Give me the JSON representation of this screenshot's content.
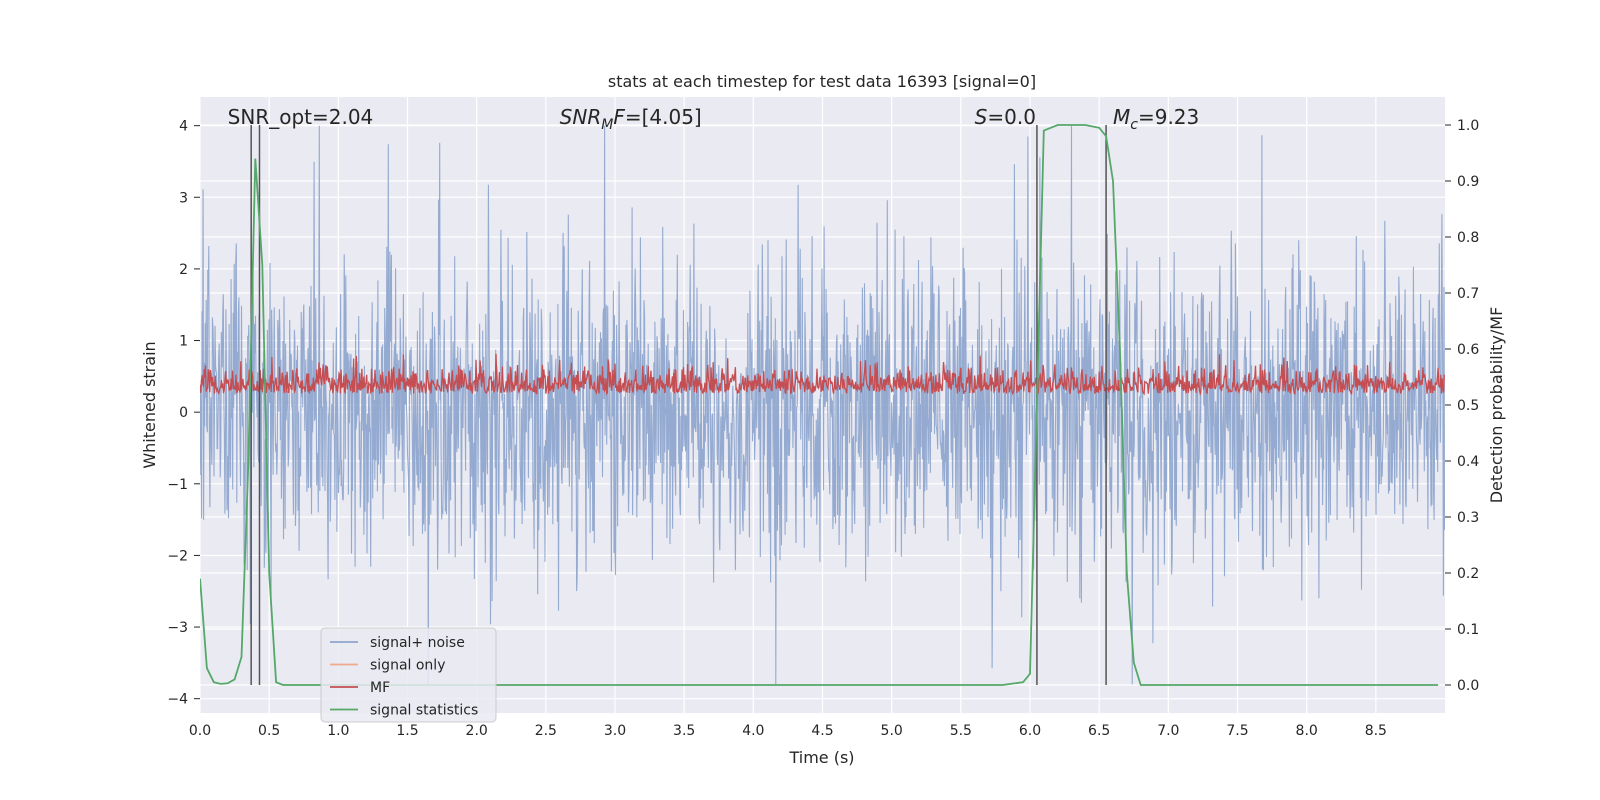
{
  "chart_data": {
    "type": "line",
    "title": "stats at each timestep for test data 16393 [signal=0]",
    "xlabel": "Time (s)",
    "ylabel": "Whitened strain",
    "ylabel_right": "Detection probability/MF",
    "xlim": [
      0.0,
      9.0
    ],
    "ylim": [
      -4.2,
      4.4
    ],
    "ylim_right": [
      -0.05,
      1.05
    ],
    "x_ticks": [
      "0.0",
      "0.5",
      "1.0",
      "1.5",
      "2.0",
      "2.5",
      "3.0",
      "3.5",
      "4.0",
      "4.5",
      "5.0",
      "5.5",
      "6.0",
      "6.5",
      "7.0",
      "7.5",
      "8.0",
      "8.5"
    ],
    "y_ticks": [
      "4",
      "3",
      "2",
      "1",
      "0",
      "−1",
      "−2",
      "−3",
      "−4"
    ],
    "y_right_ticks": [
      "1.0",
      "0.9",
      "0.8",
      "0.7",
      "0.6",
      "0.5",
      "0.4",
      "0.3",
      "0.2",
      "0.1",
      "0.0"
    ],
    "grid": true,
    "legend_placement": "lower-left",
    "annotations": [
      {
        "id": "snr-opt",
        "x": 0.2,
        "text_parts": [
          {
            "t": "SNR_opt=2.04",
            "style": "normal"
          }
        ]
      },
      {
        "id": "snr-mf",
        "x": 2.6,
        "text_parts": [
          {
            "t": "SNR",
            "style": "italic"
          },
          {
            "t": "M",
            "style": "italic-sub"
          },
          {
            "t": "F",
            "style": "italic"
          },
          {
            "t": "=[4.05]",
            "style": "normal"
          }
        ]
      },
      {
        "id": "s-val",
        "x": 5.6,
        "text_parts": [
          {
            "t": "S",
            "style": "italic"
          },
          {
            "t": "=0.0",
            "style": "normal"
          }
        ]
      },
      {
        "id": "mc-val",
        "x": 6.6,
        "text_parts": [
          {
            "t": "M",
            "style": "italic"
          },
          {
            "t": "c",
            "style": "italic-sub"
          },
          {
            "t": "=9.23",
            "style": "normal"
          }
        ]
      }
    ],
    "vlines": [
      0.37,
      0.43,
      6.05,
      6.55
    ],
    "series": [
      {
        "name": "signal+ noise",
        "color": "#8fa6cd",
        "axis": "left",
        "style": "dense-noise",
        "amplitude_envelope": [
          -3.8,
          4.0
        ]
      },
      {
        "name": "signal only",
        "color": "#f0a98e",
        "axis": "left",
        "style": "flat",
        "values": []
      },
      {
        "name": "MF",
        "color": "#c44e52",
        "axis": "right",
        "style": "dense-noise",
        "range": [
          0.5,
          0.6
        ]
      },
      {
        "name": "signal statistics",
        "color": "#55a868",
        "axis": "right",
        "x": [
          0.0,
          0.05,
          0.1,
          0.15,
          0.2,
          0.25,
          0.3,
          0.35,
          0.4,
          0.45,
          0.5,
          0.55,
          0.6,
          0.7,
          1.0,
          2.0,
          3.0,
          4.0,
          5.0,
          5.8,
          5.95,
          6.0,
          6.05,
          6.1,
          6.2,
          6.3,
          6.4,
          6.5,
          6.55,
          6.6,
          6.65,
          6.7,
          6.75,
          6.8,
          7.0,
          8.0,
          8.95
        ],
        "values": [
          0.19,
          0.03,
          0.005,
          0.002,
          0.003,
          0.01,
          0.05,
          0.4,
          0.94,
          0.75,
          0.2,
          0.005,
          0.0,
          0.0,
          0.0,
          0.0,
          0.0,
          0.0,
          0.0,
          0.0,
          0.005,
          0.02,
          0.5,
          0.99,
          1.0,
          1.0,
          1.0,
          0.995,
          0.98,
          0.9,
          0.6,
          0.2,
          0.04,
          0.0,
          0.0,
          0.0,
          0.0
        ]
      }
    ]
  }
}
